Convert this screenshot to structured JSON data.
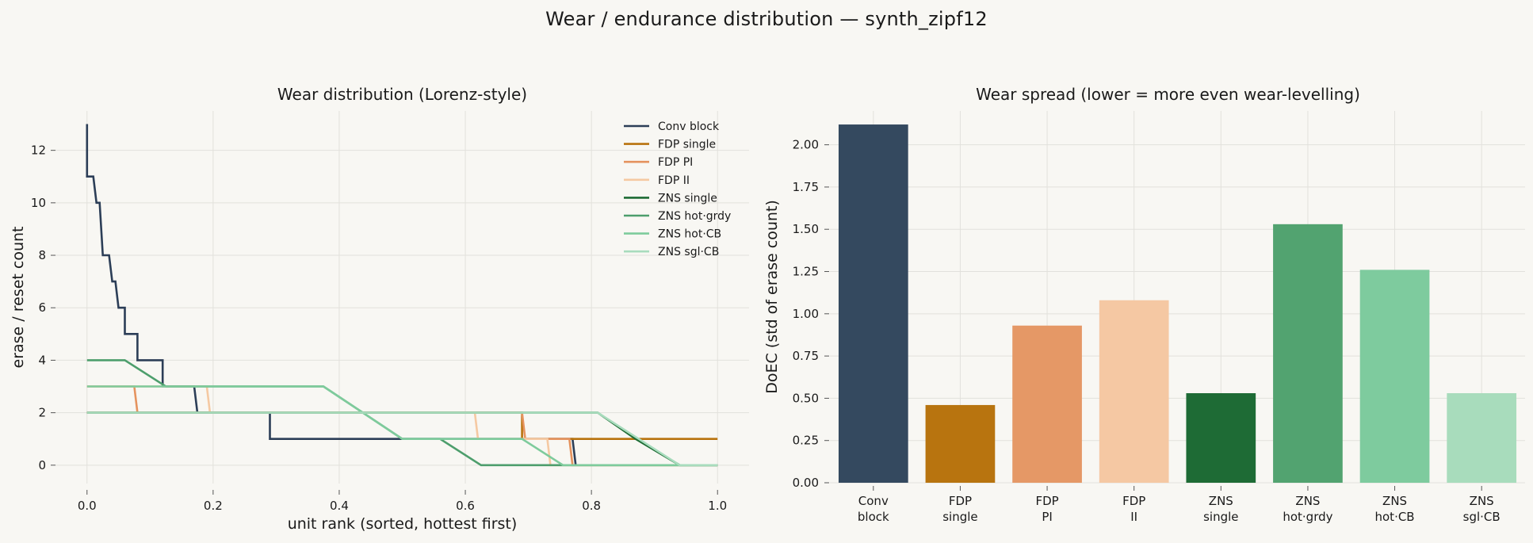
{
  "page": {
    "title": "Wear / endurance distribution — synth_zipf12"
  },
  "chart_data": [
    {
      "type": "line",
      "title": "Wear distribution (Lorenz-style)",
      "xlabel": "unit rank (sorted, hottest first)",
      "ylabel": "erase / reset count",
      "xlim": [
        -0.05,
        1.05
      ],
      "ylim": [
        -0.7,
        13.5
      ],
      "xticks": [
        0.0,
        0.2,
        0.4,
        0.6,
        0.8,
        1.0
      ],
      "xtick_labels": [
        "0.0",
        "0.2",
        "0.4",
        "0.6",
        "0.8",
        "1.0"
      ],
      "yticks": [
        0,
        2,
        4,
        6,
        8,
        10,
        12
      ],
      "ytick_labels": [
        "0",
        "2",
        "4",
        "6",
        "8",
        "10",
        "12"
      ],
      "grid": true,
      "legend_position": "top-right",
      "series": [
        {
          "name": "Conv block",
          "color": "#2c3e57",
          "x": [
            0.0,
            0.0,
            0.005,
            0.005,
            0.01,
            0.015,
            0.015,
            0.02,
            0.025,
            0.025,
            0.035,
            0.04,
            0.04,
            0.045,
            0.05,
            0.05,
            0.06,
            0.06,
            0.08,
            0.08,
            0.12,
            0.12,
            0.17,
            0.175,
            0.29,
            0.29,
            0.77,
            0.775
          ],
          "y": [
            13,
            11,
            11,
            11,
            11,
            10,
            10,
            10,
            8,
            8,
            8,
            7,
            7,
            7,
            6,
            6,
            6,
            5,
            5,
            4,
            4,
            3,
            3,
            2,
            2,
            1,
            1,
            0
          ]
        },
        {
          "name": "FDP single",
          "color": "#b8720d",
          "x": [
            0.0,
            0.69,
            0.69,
            1.0
          ],
          "y": [
            2,
            2,
            1,
            1
          ]
        },
        {
          "name": "FDP PI",
          "color": "#e5935e",
          "x": [
            0.0,
            0.075,
            0.08,
            0.69,
            0.695,
            0.765,
            0.77,
            1.0
          ],
          "y": [
            3,
            3,
            2,
            2,
            1,
            1,
            0,
            0
          ]
        },
        {
          "name": "FDP II",
          "color": "#f5c9a2",
          "x": [
            0.0,
            0.19,
            0.195,
            0.615,
            0.62,
            0.73,
            0.735,
            1.0
          ],
          "y": [
            3,
            3,
            2,
            2,
            1,
            1,
            0,
            0
          ]
        },
        {
          "name": "ZNS single",
          "color": "#1d6b34",
          "x": [
            0.0,
            0.81,
            0.87,
            0.94,
            1.0
          ],
          "y": [
            2,
            2,
            1,
            0,
            0
          ]
        },
        {
          "name": "ZNS hot·grdy",
          "color": "#4d9e6c",
          "x": [
            0.0,
            0.06,
            0.125,
            0.375,
            0.5,
            0.56,
            0.625,
            0.75,
            1.0
          ],
          "y": [
            4,
            4,
            3,
            3,
            1,
            1,
            0,
            0,
            0
          ]
        },
        {
          "name": "ZNS hot·CB",
          "color": "#7ecb9c",
          "x": [
            0.0,
            0.125,
            0.375,
            0.5,
            0.69,
            0.755,
            1.0
          ],
          "y": [
            3,
            3,
            3,
            1,
            1,
            0,
            0
          ]
        },
        {
          "name": "ZNS sgl·CB",
          "color": "#a8dcbd",
          "x": [
            0.0,
            0.81,
            0.875,
            0.94,
            1.0
          ],
          "y": [
            2,
            2,
            1,
            0,
            0
          ]
        }
      ]
    },
    {
      "type": "bar",
      "title": "Wear spread (lower = more even wear-levelling)",
      "xlabel": "",
      "ylabel": "DoEC (std of erase count)",
      "ylim": [
        0,
        2.2
      ],
      "yticks": [
        0.0,
        0.25,
        0.5,
        0.75,
        1.0,
        1.25,
        1.5,
        1.75,
        2.0
      ],
      "ytick_labels": [
        "0.00",
        "0.25",
        "0.50",
        "0.75",
        "1.00",
        "1.25",
        "1.50",
        "1.75",
        "2.00"
      ],
      "grid": true,
      "categories": [
        [
          "Conv",
          "block"
        ],
        [
          "FDP",
          "single"
        ],
        [
          "FDP",
          "PI"
        ],
        [
          "FDP",
          "II"
        ],
        [
          "ZNS",
          "single"
        ],
        [
          "ZNS",
          "hot·grdy"
        ],
        [
          "ZNS",
          "hot·CB"
        ],
        [
          "ZNS",
          "sgl·CB"
        ]
      ],
      "values": [
        2.12,
        0.46,
        0.93,
        1.08,
        0.53,
        1.53,
        1.26,
        0.53
      ],
      "colors": [
        "#34495f",
        "#b8740f",
        "#e59866",
        "#f5c8a3",
        "#1e6b35",
        "#52a370",
        "#7ecb9e",
        "#a8dcbc"
      ]
    }
  ]
}
